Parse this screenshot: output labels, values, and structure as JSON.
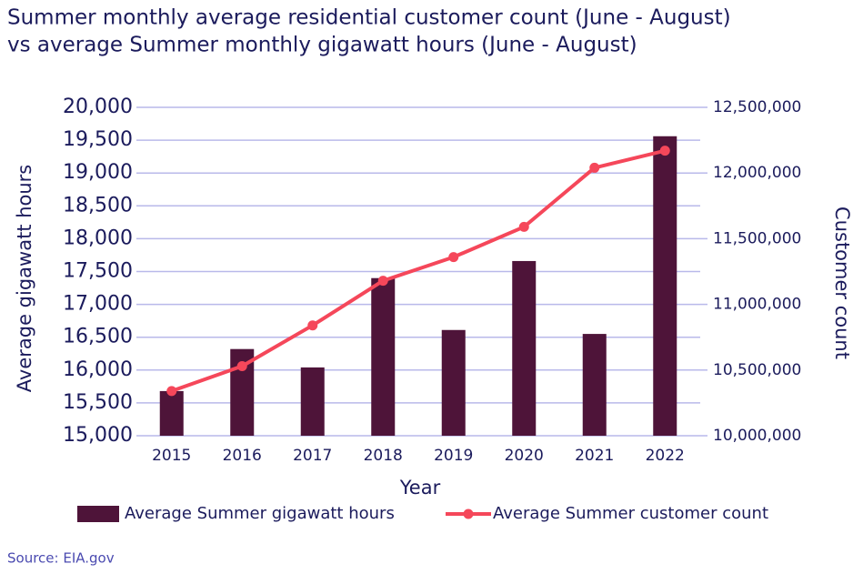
{
  "chart_data": {
    "type": "bar_line",
    "title": [
      "Summer monthly average residential customer count (June - August)",
      "vs average Summer monthly gigawatt hours (June - August)"
    ],
    "x_label": "Year",
    "y_label": "Average gigawatt hours",
    "y2_label": "Customer count",
    "categories": [
      "2015",
      "2016",
      "2017",
      "2018",
      "2019",
      "2020",
      "2021",
      "2022"
    ],
    "series": [
      {
        "name": "Average Summer gigawatt hours",
        "type": "bar",
        "color": "#4e1439",
        "values": [
          15680,
          16320,
          16040,
          17400,
          16610,
          17660,
          16550,
          19560
        ]
      },
      {
        "name": "Average Summer customer count",
        "type": "line",
        "axis": "y2",
        "color": "#f5475a",
        "values": [
          10340000,
          10530000,
          10840000,
          11180000,
          11360000,
          11590000,
          12040000,
          12170000
        ]
      }
    ],
    "ylim": [
      15000,
      20000
    ],
    "yticks": [
      {
        "value": 15000,
        "label": "15,000"
      },
      {
        "value": 15500,
        "label": "15,500"
      },
      {
        "value": 16000,
        "label": "16,000"
      },
      {
        "value": 16500,
        "label": "16,500"
      },
      {
        "value": 17000,
        "label": "17,000"
      },
      {
        "value": 17500,
        "label": "17,500"
      },
      {
        "value": 18000,
        "label": "18,000"
      },
      {
        "value": 18500,
        "label": "18,500"
      },
      {
        "value": 19000,
        "label": "19,000"
      },
      {
        "value": 19500,
        "label": "19,500"
      },
      {
        "value": 20000,
        "label": "20,000"
      }
    ],
    "y2lim": [
      10000000,
      12500000
    ],
    "y2ticks": [
      {
        "value": 10000000,
        "label": "10,000,000"
      },
      {
        "value": 10500000,
        "label": "10,500,000"
      },
      {
        "value": 11000000,
        "label": "11,000,000"
      },
      {
        "value": 11500000,
        "label": "11,500,000"
      },
      {
        "value": 12000000,
        "label": "12,000,000"
      },
      {
        "value": 12500000,
        "label": "12,500,000"
      }
    ],
    "grid": true,
    "legend": "bottom",
    "source": "Source: EIA.gov"
  }
}
